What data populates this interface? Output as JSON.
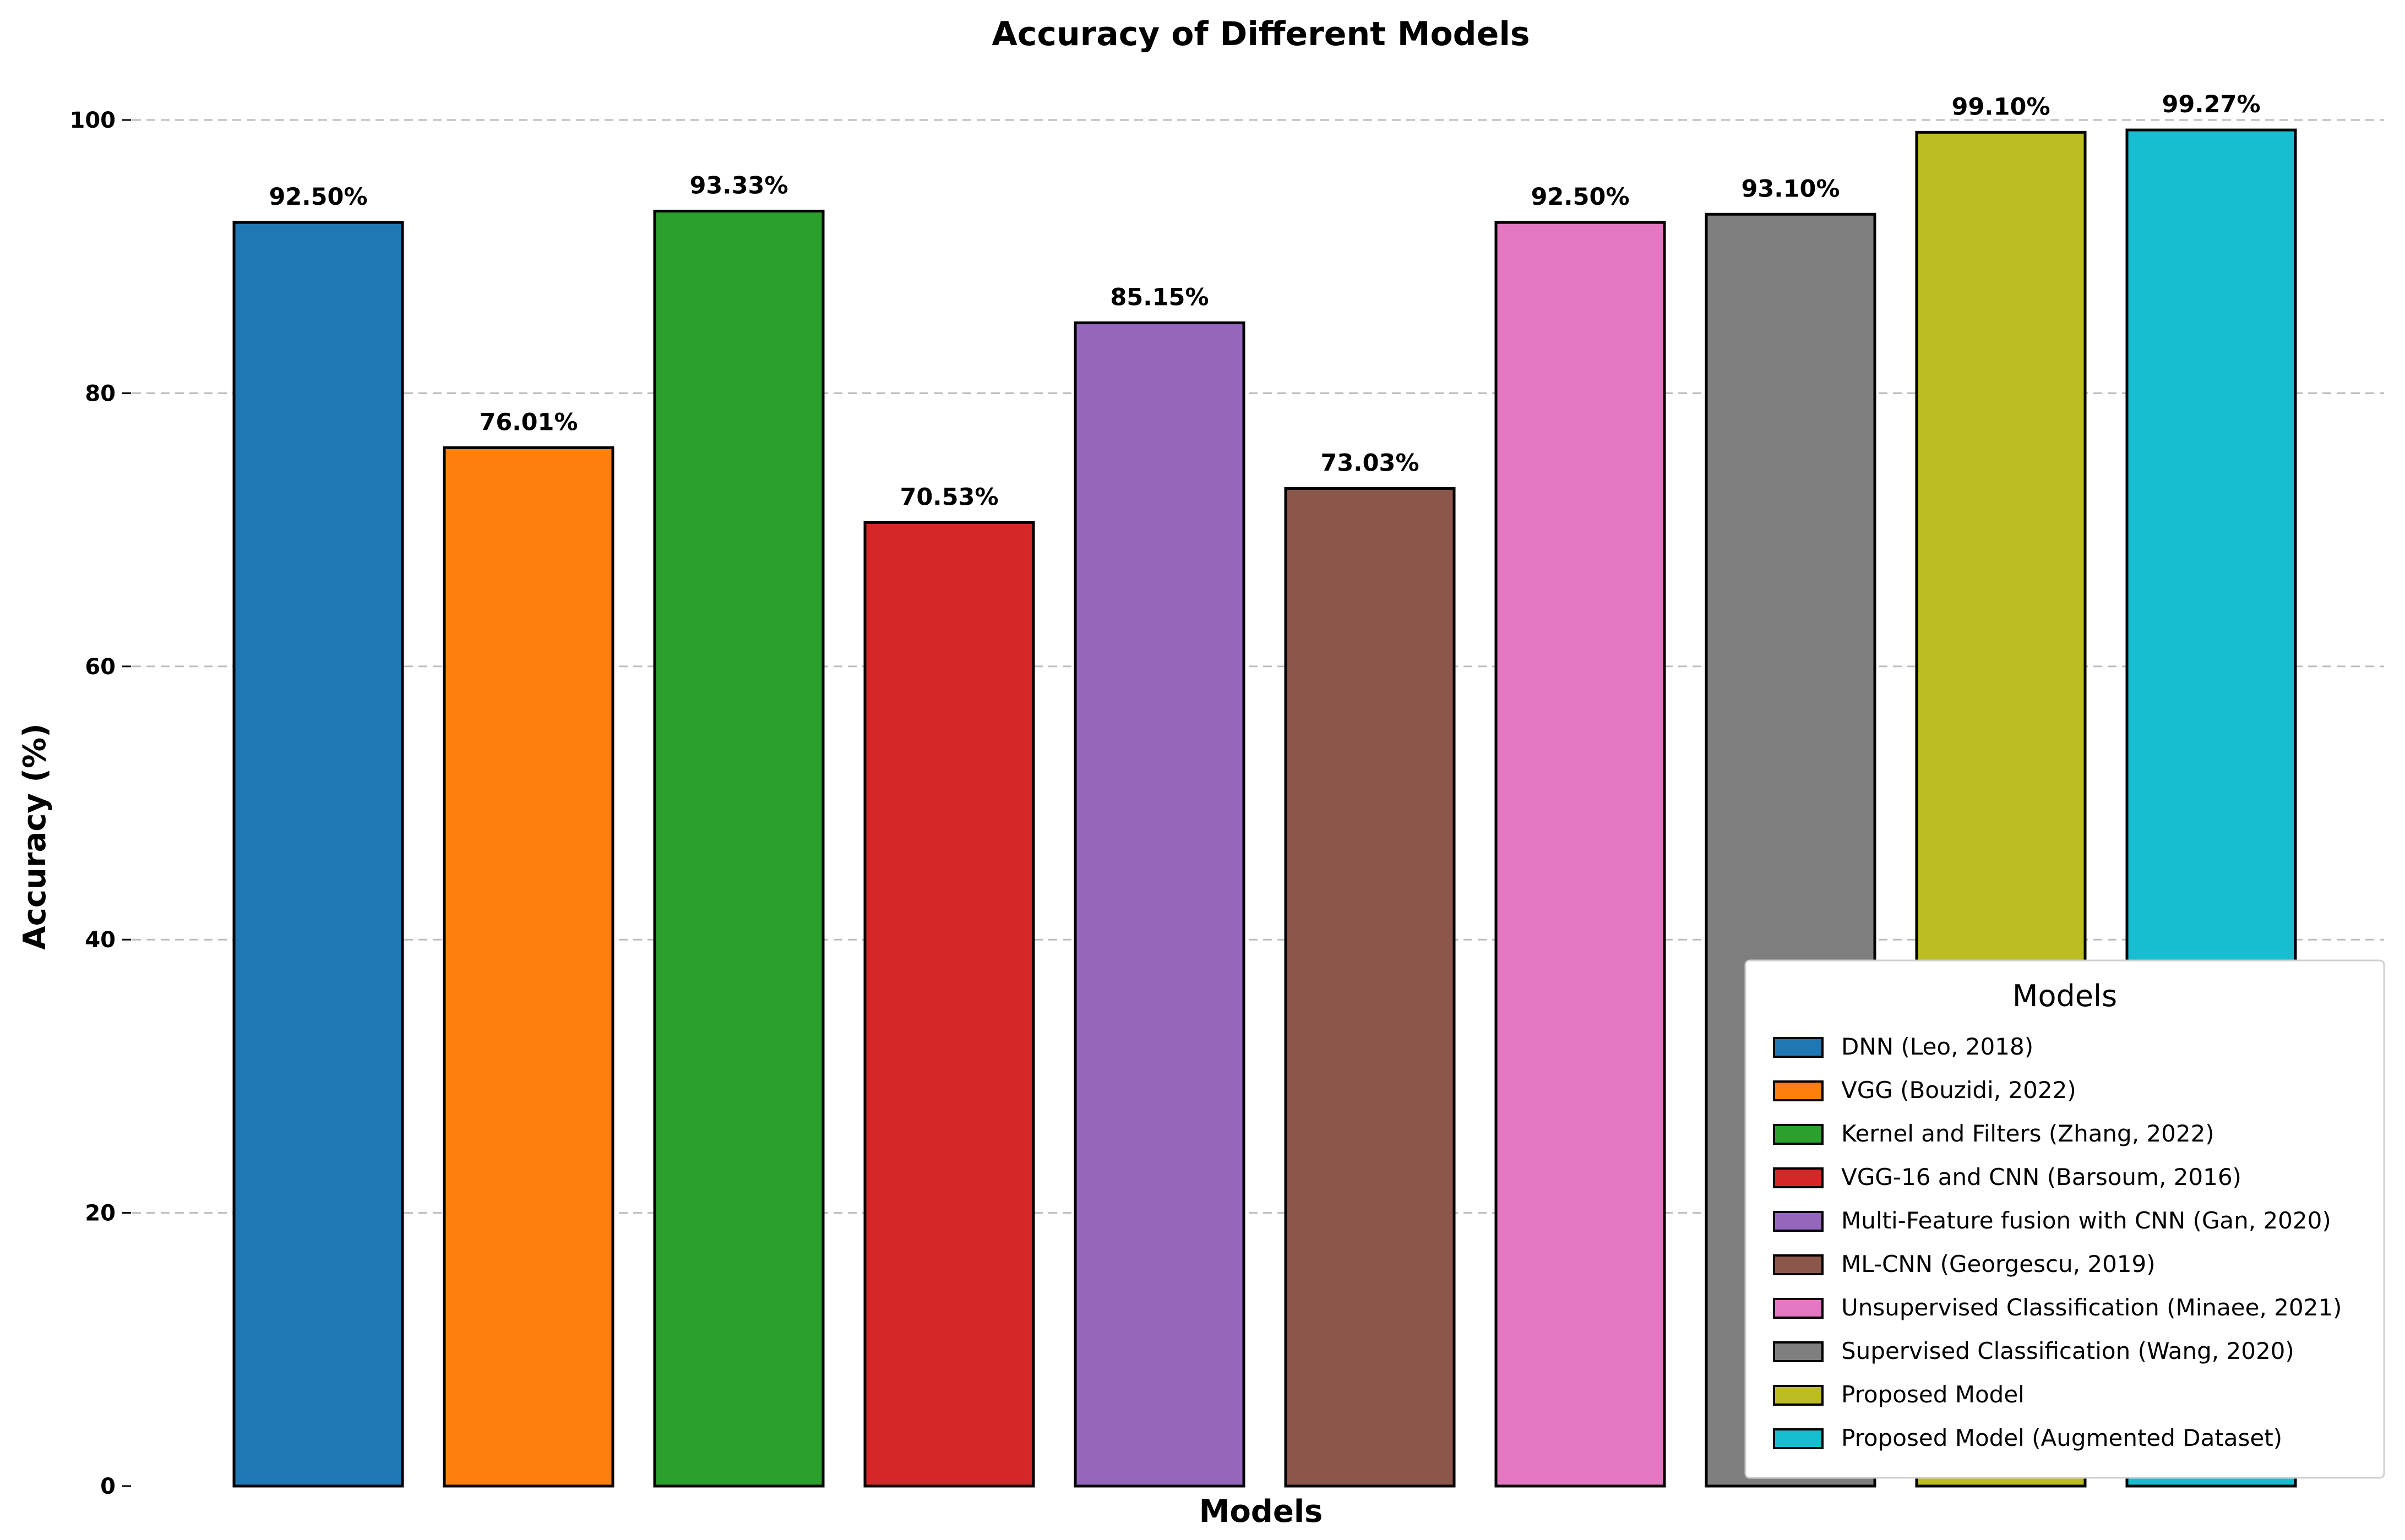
{
  "chart_data": {
    "type": "bar",
    "title": "Accuracy of Different Models",
    "xlabel": "Models",
    "ylabel": "Accuracy (%)",
    "ylim": [
      0,
      100
    ],
    "yticks": [
      0,
      20,
      40,
      60,
      80,
      100
    ],
    "grid": "y",
    "legend_title": "Models",
    "legend_position": "lower-right",
    "categories": [
      "DNN (Leo, 2018)",
      "VGG (Bouzidi, 2022)",
      "Kernel and Filters (Zhang, 2022)",
      "VGG-16 and CNN (Barsoum, 2016)",
      "Multi-Feature fusion with CNN (Gan, 2020)",
      "ML-CNN (Georgescu, 2019)",
      "Unsupervised Classification (Minaee, 2021)",
      "Supervised Classification (Wang, 2020)",
      "Proposed Model",
      "Proposed Model (Augmented Dataset)"
    ],
    "values": [
      92.5,
      76.01,
      93.33,
      70.53,
      85.15,
      73.03,
      92.5,
      93.1,
      99.1,
      99.27
    ],
    "value_labels": [
      "92.50%",
      "76.01%",
      "93.33%",
      "70.53%",
      "85.15%",
      "73.03%",
      "92.50%",
      "93.10%",
      "99.10%",
      "99.27%"
    ],
    "colors": [
      "#1f77b4",
      "#ff7f0e",
      "#2ca02c",
      "#d62728",
      "#9467bd",
      "#8c564b",
      "#e377c2",
      "#7f7f7f",
      "#bcbd22",
      "#17becf"
    ]
  }
}
